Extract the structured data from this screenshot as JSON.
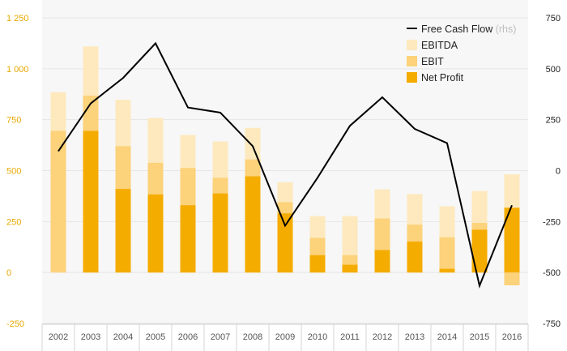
{
  "chart_data": {
    "type": "bar",
    "categories": [
      "2002",
      "2003",
      "2004",
      "2005",
      "2006",
      "2007",
      "2008",
      "2009",
      "2010",
      "2011",
      "2012",
      "2013",
      "2014",
      "2015",
      "2016"
    ],
    "series": [
      {
        "name": "EBITDA",
        "kind": "bar",
        "axis": "left",
        "color": "#fde9bd",
        "values": [
          885,
          1110,
          848,
          758,
          675,
          643,
          710,
          443,
          277,
          277,
          408,
          385,
          325,
          400,
          482
        ]
      },
      {
        "name": "EBIT",
        "kind": "bar",
        "axis": "left",
        "color": "#fcd27a",
        "values": [
          695,
          868,
          620,
          538,
          513,
          465,
          555,
          345,
          170,
          85,
          265,
          235,
          173,
          243,
          -63
        ]
      },
      {
        "name": "Net Profit",
        "kind": "bar",
        "axis": "left",
        "color": "#f5ac00",
        "values": [
          0,
          695,
          410,
          383,
          330,
          388,
          472,
          290,
          85,
          38,
          110,
          152,
          18,
          210,
          318
        ]
      },
      {
        "name": "Free Cash Flow",
        "suffix": "(rhs)",
        "kind": "line",
        "axis": "right",
        "color": "#000000",
        "values": [
          95,
          330,
          455,
          625,
          310,
          285,
          120,
          -270,
          -35,
          220,
          360,
          205,
          135,
          -565,
          -170
        ]
      }
    ],
    "ylim_left": [
      -250,
      1250
    ],
    "yticks_left": [
      -250,
      0,
      250,
      500,
      750,
      1000,
      1250
    ],
    "ytick_labels_left": [
      "-250",
      "0",
      "250",
      "500",
      "750",
      "1 000",
      "1 250"
    ],
    "ylim_right": [
      -750,
      750
    ],
    "yticks_right": [
      -750,
      -500,
      -250,
      0,
      250,
      500,
      750
    ],
    "ytick_labels_right": [
      "-750",
      "-500",
      "-250",
      "0",
      "250",
      "500",
      "750"
    ],
    "grid": "horizontal",
    "legend_position": "top-right",
    "colors": {
      "background": "#ffffff",
      "plot_background": "#f7f7f7",
      "grid": "#e6e6e6",
      "left_axis_text": "#e8a800"
    }
  }
}
